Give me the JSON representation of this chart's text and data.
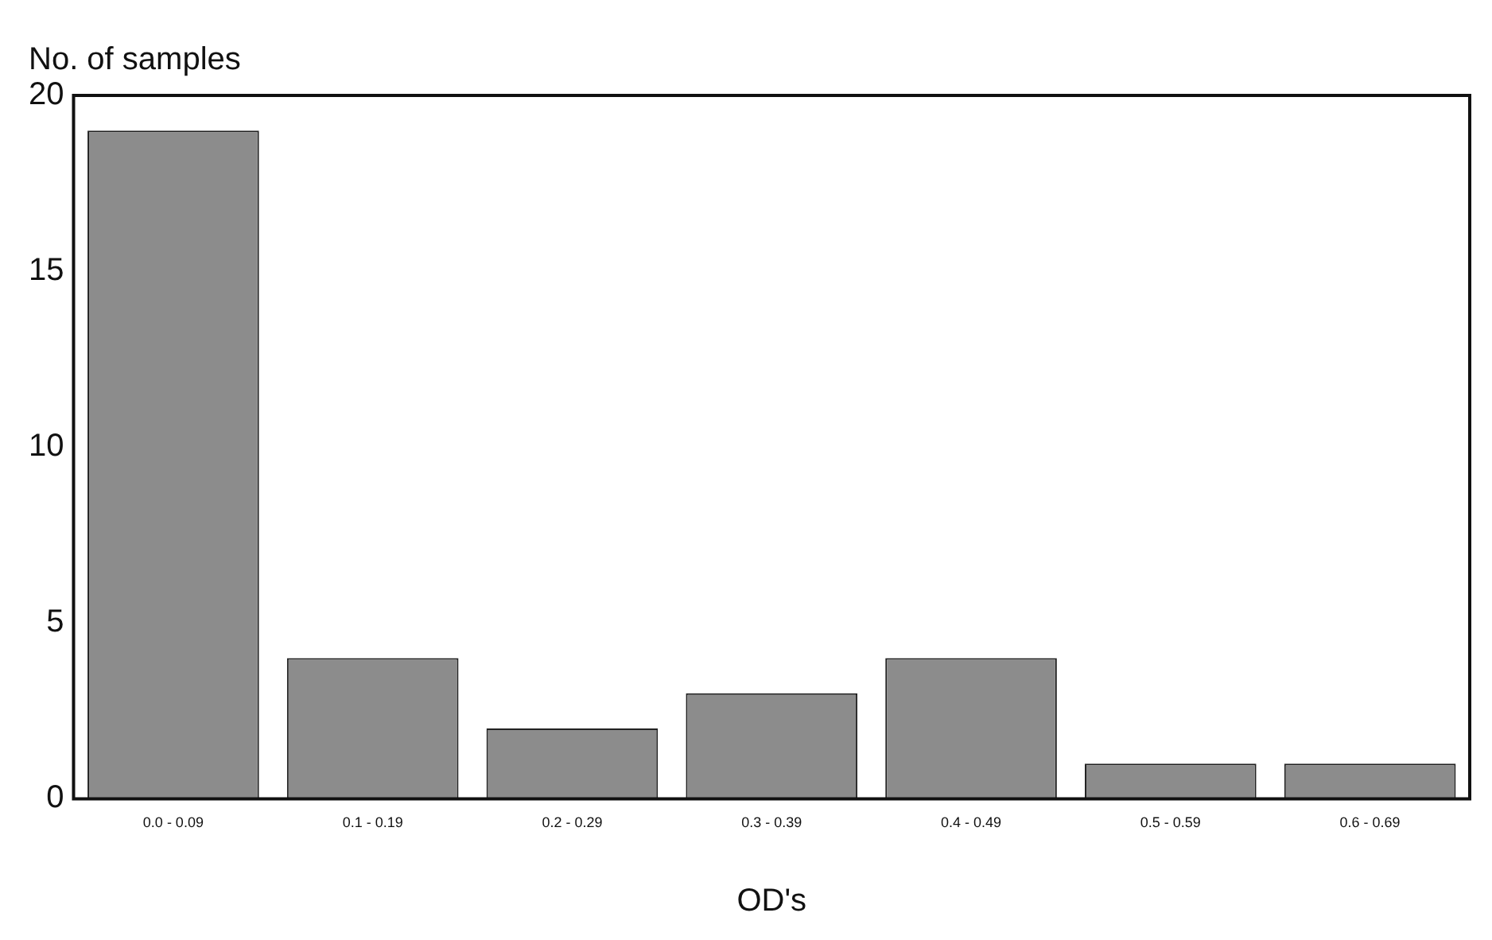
{
  "chart_data": {
    "type": "bar",
    "ylabel": "No. of samples",
    "xlabel": "OD's",
    "categories": [
      "0.0 - 0.09",
      "0.1 - 0.19",
      "0.2 - 0.29",
      "0.3 - 0.39",
      "0.4 - 0.49",
      "0.5 - 0.59",
      "0.6 - 0.69"
    ],
    "values": [
      19,
      4,
      2,
      3,
      4,
      1,
      1
    ],
    "color": "#8c8c8c",
    "ylim": [
      0,
      20
    ],
    "yticks": [
      0,
      5,
      10,
      15,
      20
    ],
    "grid": false
  }
}
